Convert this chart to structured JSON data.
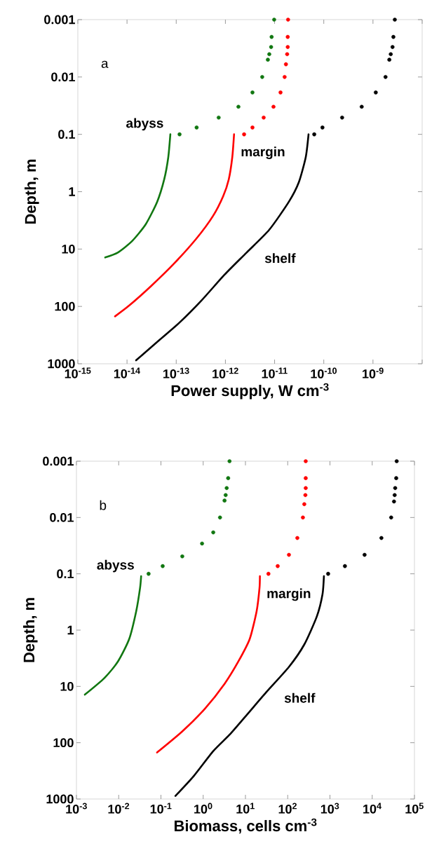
{
  "chart_data": [
    {
      "type": "line",
      "xlabel": "Power supply, W cm$^{-3}$",
      "ylabel": "Depth, m",
      "log": "xy",
      "xlim": [
        1e-15,
        1e-08
      ],
      "ylim": [
        1000,
        0.001
      ],
      "xticks": [
        {
          "value": 1e-15,
          "label": "10$^{-15}$"
        },
        {
          "value": 1e-14,
          "label": "10$^{-14}$"
        },
        {
          "value": 1e-13,
          "label": "10$^{-13}$"
        },
        {
          "value": 1e-12,
          "label": "10$^{-12}$"
        },
        {
          "value": 1e-11,
          "label": "10$^{-11}$"
        },
        {
          "value": 1e-10,
          "label": "10$^{-10}$"
        },
        {
          "value": 1e-09,
          "label": "10$^{-9}$"
        },
        {
          "value": 1e-08,
          "label": null
        }
      ],
      "yticks": [
        0.001,
        0.01,
        0.1,
        1,
        10,
        100,
        1000
      ],
      "annotations": [
        "a"
      ],
      "series": [
        {
          "type": "scatter",
          "marker": "circle",
          "color": "#117711",
          "x": [
            9.8e-12,
            8.7e-12,
            8.5e-12,
            7.8e-12,
            7.3e-12,
            5.6e-12,
            3.55e-12,
            1.84e-12,
            7.3e-13,
            2.6e-13,
            1.17e-13
          ],
          "values": [
            0.001,
            0.002,
            0.003,
            0.004,
            0.005,
            0.01,
            0.0186,
            0.033,
            0.051,
            0.076,
            0.1
          ]
        },
        {
          "name": "abyss",
          "color": "#117711",
          "x": [
            7.6e-14,
            6.9e-14,
            5.7e-14,
            4.1e-14,
            2.4e-14,
            1.26e-14,
            6.5e-15,
            3.6e-15
          ],
          "values": [
            0.1,
            0.25,
            0.61,
            1.5,
            3.7,
            7.3,
            11.5,
            14
          ]
        },
        {
          "type": "scatter",
          "marker": "circle",
          "color": "#ff0000",
          "x": [
            1.88e-11,
            1.85e-11,
            1.85e-11,
            1.8e-11,
            1.7e-11,
            1.6e-11,
            1.32e-11,
            9.5e-12,
            6e-12,
            3.55e-12,
            2.4e-12
          ],
          "values": [
            0.001,
            0.002,
            0.003,
            0.004,
            0.006,
            0.01,
            0.0186,
            0.033,
            0.051,
            0.076,
            0.1
          ]
        },
        {
          "name": "margin",
          "color": "#ff0000",
          "x": [
            1.5e-12,
            1.38e-12,
            1.17e-12,
            9e-13,
            5.6e-13,
            2.6e-13,
            9e-14,
            3.1e-14,
            1.1e-14,
            5.7e-15
          ],
          "values": [
            0.1,
            0.25,
            0.61,
            1.2,
            2.65,
            6.5,
            18,
            44,
            97,
            149
          ]
        },
        {
          "type": "scatter",
          "marker": "circle",
          "color": "#000000",
          "x": [
            2.78e-09,
            2.6e-09,
            2.5e-09,
            2.3e-09,
            2.15e-09,
            1.8e-09,
            1.14e-09,
            5.9e-10,
            2.36e-10,
            9.4e-11,
            6.4e-11
          ],
          "values": [
            0.001,
            0.002,
            0.003,
            0.004,
            0.005,
            0.01,
            0.0186,
            0.033,
            0.051,
            0.076,
            0.1
          ]
        },
        {
          "name": "shelf",
          "color": "#000000",
          "x": [
            4.9e-11,
            4.3e-11,
            3.1e-11,
            1.95e-11,
            7.8e-12,
            2.7e-12,
            9.6e-13,
            3.3e-13,
            1.17e-13,
            4.7e-14,
            1.53e-14
          ],
          "values": [
            0.1,
            0.25,
            0.69,
            1.5,
            4.6,
            11.5,
            28,
            78,
            191,
            376,
            871
          ]
        }
      ]
    },
    {
      "type": "line",
      "xlabel": "Biomass, cells cm$^{-3}$",
      "ylabel": "Depth, m",
      "log": "xy",
      "xlim": [
        0.001,
        100000
      ],
      "ylim": [
        1000,
        0.001
      ],
      "xticks": [
        {
          "value": 0.001,
          "label": "10$^{-3}$"
        },
        {
          "value": 0.01,
          "label": "10$^{-2}$"
        },
        {
          "value": 0.1,
          "label": "10$^{-1}$"
        },
        {
          "value": 1,
          "label": "10$^{0}$"
        },
        {
          "value": 10,
          "label": "10$^{1}$"
        },
        {
          "value": 100,
          "label": "10$^{2}$"
        },
        {
          "value": 1000,
          "label": "10$^{3}$"
        },
        {
          "value": 10000,
          "label": "10$^{4}$"
        },
        {
          "value": 100000,
          "label": "10$^{5}$"
        }
      ],
      "yticks": [
        0.001,
        0.01,
        0.1,
        1,
        10,
        100,
        1000
      ],
      "annotations": [
        "b"
      ],
      "series": [
        {
          "type": "scatter",
          "marker": "circle",
          "color": "#117711",
          "x": [
            4.2,
            3.9,
            3.6,
            3.4,
            3.2,
            2.5,
            1.73,
            0.94,
            0.32,
            0.11,
            0.051
          ],
          "values": [
            0.001,
            0.002,
            0.003,
            0.004,
            0.005,
            0.01,
            0.0184,
            0.029,
            0.049,
            0.073,
            0.1
          ]
        },
        {
          "name": "abyss",
          "color": "#117711",
          "x": [
            0.034,
            0.032,
            0.026,
            0.0177,
            0.0096,
            0.0045,
            0.00158
          ],
          "values": [
            0.11,
            0.18,
            0.46,
            1.44,
            3.6,
            7.2,
            14
          ]
        },
        {
          "type": "scatter",
          "marker": "circle",
          "color": "#ff0000",
          "x": [
            267,
            267,
            267,
            262,
            247,
            229,
            169,
            107,
            58,
            35
          ],
          "values": [
            0.001,
            0.002,
            0.003,
            0.004,
            0.0058,
            0.01,
            0.0231,
            0.046,
            0.073,
            0.1
          ]
        },
        {
          "name": "margin",
          "color": "#ff0000",
          "x": [
            22,
            21.5,
            18.4,
            12.6,
            6.8,
            3.2,
            1.09,
            0.32,
            0.081
          ],
          "values": [
            0.11,
            0.18,
            0.46,
            1.44,
            3.6,
            9,
            25,
            63,
            149
          ]
        },
        {
          "type": "scatter",
          "marker": "circle",
          "color": "#000000",
          "x": [
            38000,
            37000,
            35000,
            34000,
            32800,
            28100,
            16500,
            6600,
            2260,
            906
          ],
          "values": [
            0.001,
            0.002,
            0.003,
            0.004,
            0.0052,
            0.01,
            0.0231,
            0.046,
            0.073,
            0.1
          ]
        },
        {
          "name": "shelf",
          "color": "#000000",
          "x": [
            720,
            667,
            490,
            247,
            107,
            31,
            10.8,
            4.3,
            1.73,
            0.59,
            0.22
          ],
          "values": [
            0.11,
            0.23,
            0.57,
            1.8,
            4.5,
            12.7,
            32,
            71,
            141,
            396,
            883
          ]
        }
      ]
    }
  ]
}
